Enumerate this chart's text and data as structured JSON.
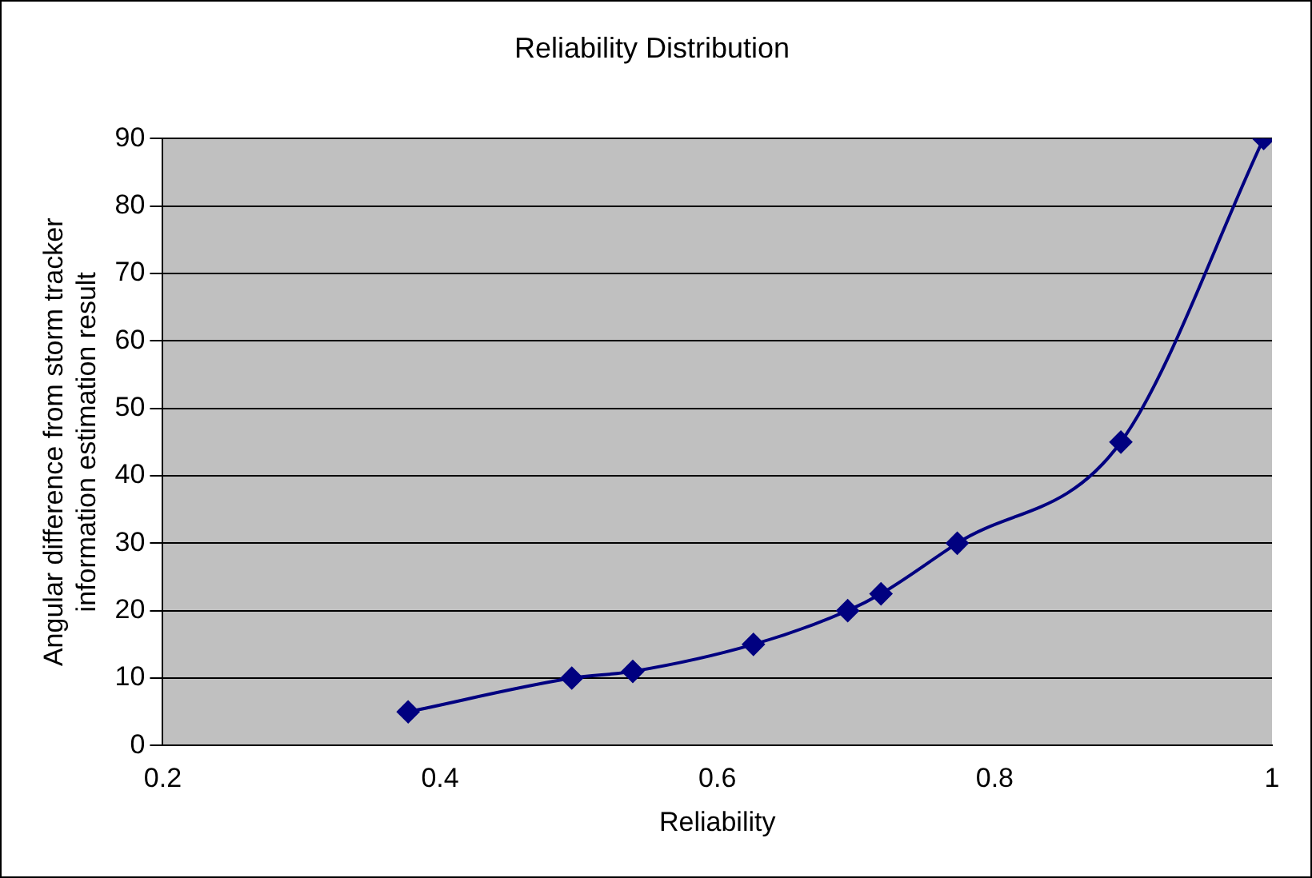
{
  "chart_data": {
    "type": "line",
    "title": "Reliability Distribution",
    "xlabel": "Reliability",
    "ylabel": "Angular difference from storm tracker information estimation result",
    "x": [
      0.377,
      0.495,
      0.539,
      0.626,
      0.694,
      0.718,
      0.773,
      0.891,
      0.994
    ],
    "series": [
      {
        "color": "#000080",
        "values": [
          5,
          10,
          11,
          15,
          20,
          22.5,
          30,
          45,
          90
        ]
      }
    ],
    "xlim": [
      0.2,
      1
    ],
    "xticks": [
      0.2,
      0.4,
      0.6,
      0.8,
      1
    ],
    "ylim": [
      0,
      90
    ],
    "yticks": [
      0,
      10,
      20,
      30,
      40,
      50,
      60,
      70,
      80,
      90
    ],
    "grid": "y",
    "legend": false,
    "marker": "diamond",
    "line_style": "solid"
  }
}
